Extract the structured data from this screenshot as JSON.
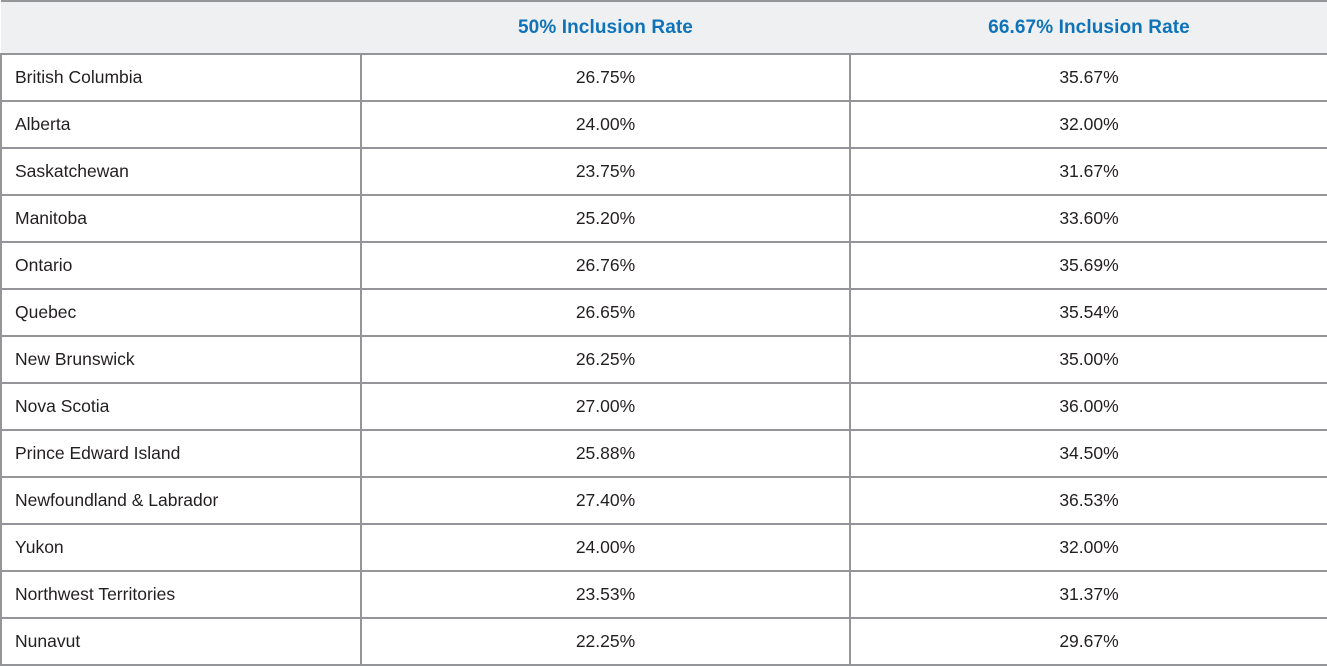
{
  "header": {
    "col_region": "",
    "col_rate50": "50% Inclusion Rate",
    "col_rate6667": "66.67% Inclusion Rate"
  },
  "rows": [
    {
      "region": "British Columbia",
      "rate50": "26.75%",
      "rate6667": "35.67%"
    },
    {
      "region": "Alberta",
      "rate50": "24.00%",
      "rate6667": "32.00%"
    },
    {
      "region": "Saskatchewan",
      "rate50": "23.75%",
      "rate6667": "31.67%"
    },
    {
      "region": "Manitoba",
      "rate50": "25.20%",
      "rate6667": "33.60%"
    },
    {
      "region": "Ontario",
      "rate50": "26.76%",
      "rate6667": "35.69%"
    },
    {
      "region": "Quebec",
      "rate50": "26.65%",
      "rate6667": "35.54%"
    },
    {
      "region": "New Brunswick",
      "rate50": "26.25%",
      "rate6667": "35.00%"
    },
    {
      "region": "Nova Scotia",
      "rate50": "27.00%",
      "rate6667": "36.00%"
    },
    {
      "region": "Prince Edward Island",
      "rate50": "25.88%",
      "rate6667": "34.50%"
    },
    {
      "region": "Newfoundland & Labrador",
      "rate50": "27.40%",
      "rate6667": "36.53%"
    },
    {
      "region": "Yukon",
      "rate50": "24.00%",
      "rate6667": "32.00%"
    },
    {
      "region": "Northwest Territories",
      "rate50": "23.53%",
      "rate6667": "31.37%"
    },
    {
      "region": "Nunavut",
      "rate50": "22.25%",
      "rate6667": "29.67%"
    }
  ],
  "colors": {
    "header_text": "#0e73b9",
    "header_bg": "#eff0f1",
    "border": "#939598",
    "body_text": "#231f20"
  }
}
